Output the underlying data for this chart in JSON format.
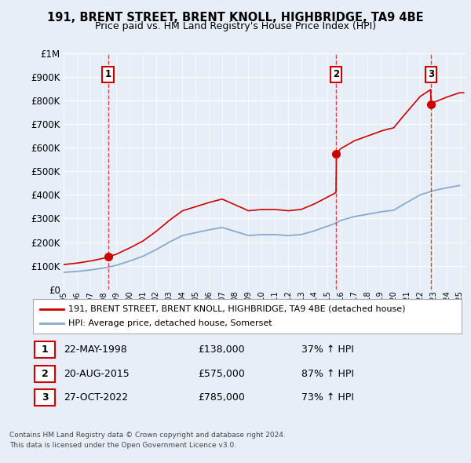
{
  "title": "191, BRENT STREET, BRENT KNOLL, HIGHBRIDGE, TA9 4BE",
  "subtitle": "Price paid vs. HM Land Registry's House Price Index (HPI)",
  "bg_color": "#e8eef8",
  "plot_bg_color": "#e8eef8",
  "grid_color": "#ffffff",
  "red_line_color": "#cc0000",
  "blue_line_color": "#88aacc",
  "transactions": [
    {
      "date_num": 1998.38,
      "price": 138000,
      "label": "1",
      "date_str": "22-MAY-1998",
      "pct": "37%"
    },
    {
      "date_num": 2015.63,
      "price": 575000,
      "label": "2",
      "date_str": "20-AUG-2015",
      "pct": "87%"
    },
    {
      "date_num": 2022.82,
      "price": 785000,
      "label": "3",
      "date_str": "27-OCT-2022",
      "pct": "73%"
    }
  ],
  "legend_line1": "191, BRENT STREET, BRENT KNOLL, HIGHBRIDGE, TA9 4BE (detached house)",
  "legend_line2": "HPI: Average price, detached house, Somerset",
  "footer1": "Contains HM Land Registry data © Crown copyright and database right 2024.",
  "footer2": "This data is licensed under the Open Government Licence v3.0.",
  "ylim": [
    0,
    1000000
  ],
  "xlim": [
    1995.0,
    2025.5
  ],
  "ytick_vals": [
    0,
    100000,
    200000,
    300000,
    400000,
    500000,
    600000,
    700000,
    800000,
    900000,
    1000000
  ],
  "years_hpi": [
    1995,
    1995.5,
    1996,
    1996.5,
    1997,
    1997.5,
    1998,
    1998.5,
    1999,
    1999.5,
    2000,
    2000.5,
    2001,
    2001.5,
    2002,
    2002.5,
    2003,
    2003.5,
    2004,
    2004.5,
    2005,
    2005.5,
    2006,
    2006.5,
    2007,
    2007.5,
    2008,
    2008.5,
    2009,
    2009.5,
    2010,
    2010.5,
    2011,
    2011.5,
    2012,
    2012.5,
    2013,
    2013.5,
    2014,
    2014.5,
    2015,
    2015.5,
    2016,
    2016.5,
    2017,
    2017.5,
    2018,
    2018.5,
    2019,
    2019.5,
    2020,
    2020.5,
    2021,
    2021.5,
    2022,
    2022.5,
    2023,
    2023.5,
    2024,
    2024.5,
    2025
  ],
  "hpi_values": [
    72000,
    74000,
    76000,
    79000,
    82000,
    86000,
    90000,
    96000,
    102000,
    111000,
    120000,
    130000,
    140000,
    154000,
    168000,
    184000,
    200000,
    214000,
    228000,
    234000,
    240000,
    246000,
    252000,
    257000,
    262000,
    254000,
    245000,
    237000,
    228000,
    230000,
    232000,
    232000,
    232000,
    230000,
    228000,
    230000,
    232000,
    240000,
    248000,
    258000,
    268000,
    278000,
    292000,
    300000,
    308000,
    313000,
    318000,
    323000,
    328000,
    332000,
    335000,
    352000,
    368000,
    384000,
    400000,
    409000,
    418000,
    424000,
    430000,
    435000,
    440000
  ]
}
